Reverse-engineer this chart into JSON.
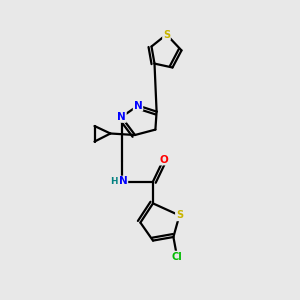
{
  "bg_color": "#e8e8e8",
  "bond_color": "#000000",
  "atom_colors": {
    "S": "#c8b400",
    "N": "#0000ff",
    "O": "#ff0000",
    "Cl": "#00bb00",
    "C": "#000000",
    "H": "#008080"
  }
}
